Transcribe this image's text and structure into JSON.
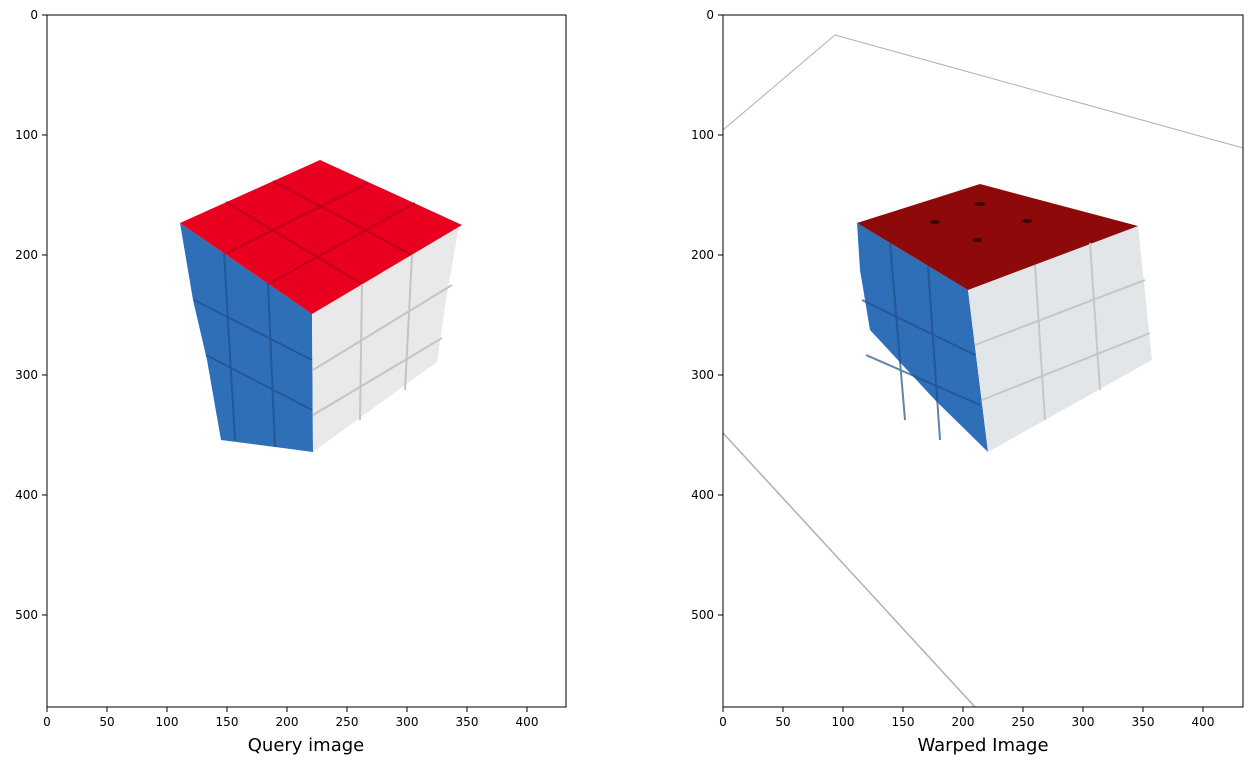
{
  "panels": [
    {
      "title": "Query image",
      "x_ticks": [
        "0",
        "50",
        "100",
        "150",
        "200",
        "250",
        "300",
        "350",
        "400"
      ],
      "y_ticks": [
        "0",
        "100",
        "200",
        "300",
        "400",
        "500"
      ],
      "image": "rubiks-cube-photo"
    },
    {
      "title": "Warped Image",
      "x_ticks": [
        "0",
        "50",
        "100",
        "150",
        "200",
        "250",
        "300",
        "350",
        "400"
      ],
      "y_ticks": [
        "0",
        "100",
        "200",
        "300",
        "400",
        "500"
      ],
      "image": "perspective-warped-rubiks-cube"
    }
  ],
  "colors": {
    "cube_red_query": "#e8001e",
    "cube_red_warped": "#8e0a0a",
    "cube_blue": "#2f6fb8",
    "cube_white": "#e6e6e6"
  }
}
